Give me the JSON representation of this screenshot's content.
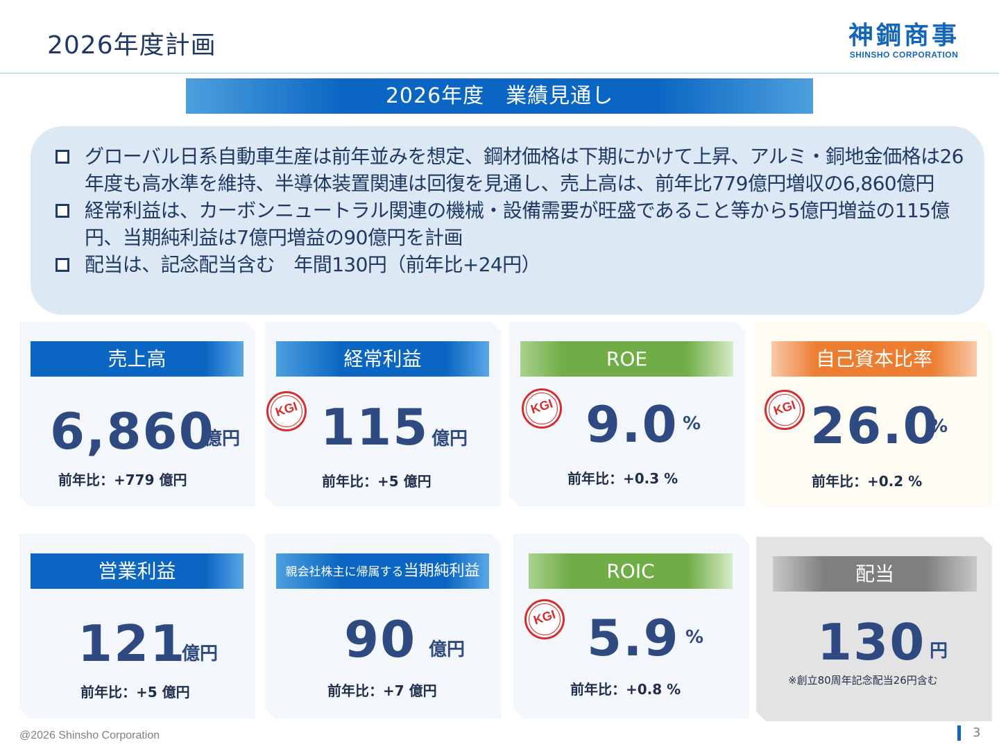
{
  "header": {
    "title": "2026年度計画",
    "logo_main": "神鋼商事",
    "logo_sub": "SHINSHO CORPORATION"
  },
  "banner": "2026年度　業績見通し",
  "summary": [
    "グローバル日系自動車生産は前年並みを想定、鋼材価格は下期にかけて上昇、アルミ・銅地金価格は26年度も高水準を維持、半導体装置関連は回復を見通し、売上高は、前年比779億円増収の6,860億円",
    "経常利益は、カーボンニュートラル関連の機械・設備需要が旺盛であること等から5億円増益の115億円、当期純利益は7億円増益の90億円を計画",
    "配当は、記念配当含む　年間130円（前年比+24円）"
  ],
  "kgi_label": "KGI",
  "cards": {
    "sales": {
      "label": "売上高",
      "value": "6,860",
      "unit": "億円",
      "yoy": "前年比：+779 億円"
    },
    "ordinary_profit": {
      "label": "経常利益",
      "value": "115",
      "unit": "億円",
      "yoy": "前年比：+5 億円",
      "kgi": true
    },
    "roe": {
      "label": "ROE",
      "value": "9.0",
      "unit": "%",
      "yoy": "前年比：+0.3 %",
      "kgi": true
    },
    "equity_ratio": {
      "label": "自己資本比率",
      "value": "26.0",
      "unit": "%",
      "yoy": "前年比：+0.2 %",
      "kgi": true
    },
    "operating_profit": {
      "label": "営業利益",
      "value": "121",
      "unit": "億円",
      "yoy": "前年比：+5 億円"
    },
    "net_income": {
      "label_small": "親会社株主に帰属する",
      "label": "当期純利益",
      "value": "90",
      "unit": "億円",
      "yoy": "前年比：+7 億円"
    },
    "roic": {
      "label": "ROIC",
      "value": "5.9",
      "unit": "%",
      "yoy": "前年比：+0.8 %",
      "kgi": true
    },
    "dividend": {
      "label": "配当",
      "value": "130",
      "unit": "円",
      "note": "※創立80周年記念配当26円含む"
    }
  },
  "footer": {
    "copyright": "@2026 Shinsho Corporation",
    "page": "3"
  },
  "colors": {
    "navy": "#1f3864",
    "blue": "#0a66c2",
    "green": "#70ad47",
    "orange": "#ed7d31",
    "grey": "#7f7f7f",
    "kgi_red": "#d32f2f"
  }
}
